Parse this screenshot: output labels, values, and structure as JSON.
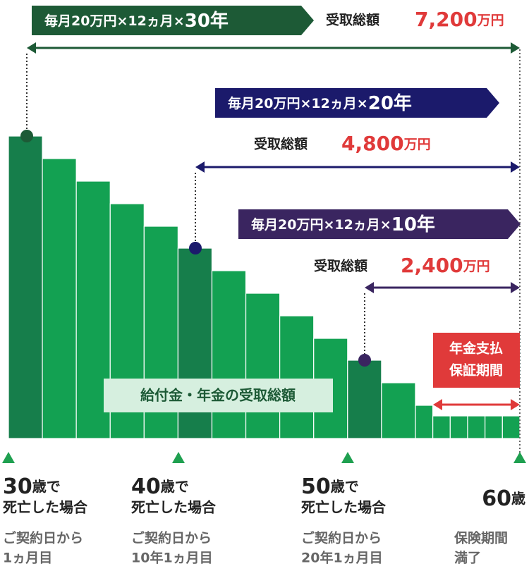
{
  "chart_data": {
    "type": "bar",
    "values": [
      7200,
      6663,
      6126,
      5589,
      5052,
      4531,
      3994,
      3457,
      2920,
      2383,
      1863,
      1326,
      789,
      537,
      537,
      537,
      537,
      537
    ],
    "ylim": [
      0,
      7200
    ],
    "color": "#13a152",
    "highlight_color": "#167e4b",
    "highlight": [
      0,
      5,
      10
    ],
    "plans": [
      {
        "prefix": "毎月20万円×12ヵ月×",
        "years": "30年",
        "total_label": "受取総額",
        "total": "7,200",
        "unit": "万円",
        "color": "#1d5a36"
      },
      {
        "prefix": "毎月20万円×12ヵ月×",
        "years": "20年",
        "total_label": "受取総額",
        "total": "4,800",
        "unit": "万円",
        "color": "#1b1a6b"
      },
      {
        "prefix": "毎月20万円×12ヵ月×",
        "years": "10年",
        "total_label": "受取総額",
        "total": "2,400",
        "unit": "万円",
        "color": "#3a2560"
      }
    ],
    "center_label": "給付金・年金の受取総額",
    "guarantee": [
      "年金支払",
      "保証期間"
    ],
    "ages": [
      {
        "num": "30",
        "suffix": "歳で",
        "line2": "死亡した場合",
        "sub": [
          "ご契約日から",
          "1ヵ月目"
        ]
      },
      {
        "num": "40",
        "suffix": "歳で",
        "line2": "死亡した場合",
        "sub": [
          "ご契約日から",
          "10年1ヵ月目"
        ]
      },
      {
        "num": "50",
        "suffix": "歳で",
        "line2": "死亡した場合",
        "sub": [
          "ご契約日から",
          "20年1ヵ月目"
        ]
      },
      {
        "num": "60",
        "suffix": "歳",
        "sub": [
          "保険期間",
          "満了"
        ]
      }
    ]
  }
}
